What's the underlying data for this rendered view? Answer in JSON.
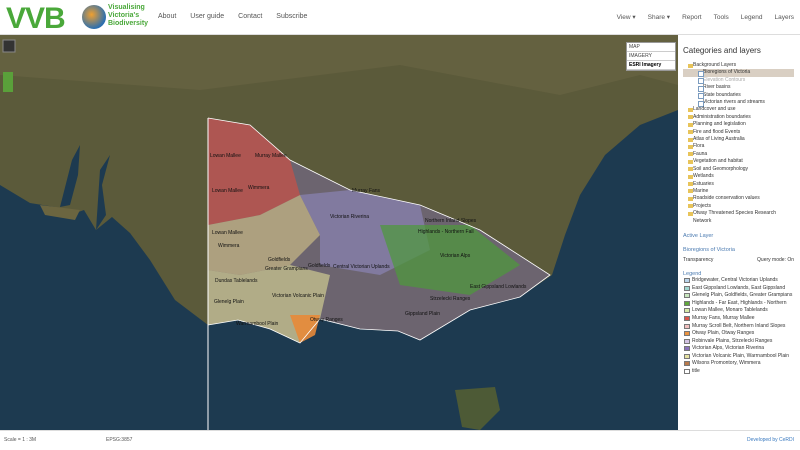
{
  "header": {
    "logo": "VVB",
    "tagline": [
      "Visualising",
      "Victoria's",
      "Biodiversity"
    ],
    "nav": [
      "About",
      "User guide",
      "Contact",
      "Subscribe"
    ],
    "tools": [
      "View",
      "Share",
      "Report",
      "Tools",
      "Legend",
      "Layers"
    ]
  },
  "basemaps": [
    "MAP",
    "IMAGERY",
    "ESRI Imagery"
  ],
  "map_labels": [
    "Lowan Mallee",
    "Murray Mallee",
    "Lowan Mallee",
    "Wimmera",
    "Lowan Mallee",
    "Wimmera",
    "Goldfields",
    "Victorian Riverina",
    "Northern Inland Slopes",
    "Central Victorian Uplands",
    "Greater Grampians",
    "Dundas Tablelands",
    "Victorian Volcanic Plain",
    "Glenelg Plain",
    "Warrnambool Plain",
    "Otway Ranges",
    "Gippsland Plain",
    "East Gippsland Lowlands",
    "Highlands - Northern Fall",
    "Murray Fans",
    "Victorian Alps",
    "Strzelecki Ranges",
    "Goldfields"
  ],
  "panel": {
    "title": "Categories and layers",
    "background": {
      "name": "Background Layers",
      "layers": [
        "Bioregions of Victoria",
        "Elevation Contours",
        "River basins",
        "State boundaries",
        "Victorian rivers and streams"
      ]
    },
    "categories": [
      "Landcover and use",
      "Administration boundaries",
      "Planning and legislation",
      "Fire and flood Events",
      "Atlas of Living Australia",
      "Flora",
      "Fauna",
      "Vegetation and habitat",
      "Soil and Geomorphology",
      "Wetlands",
      "Estuaries",
      "Marine",
      "Roadside conservation values",
      "Projects",
      "Otway Threatened Species Research Network"
    ],
    "active_layer": {
      "heading": "Active Layer",
      "name": "Bioregions of Victoria",
      "transparency": "Transparency",
      "query": "Query mode: On"
    },
    "legend": {
      "heading": "Legend",
      "items": [
        {
          "label": "Bridgewater, Central Victorian Uplands",
          "color": "#b9d3ea"
        },
        {
          "label": "East Gippsland Lowlands, East Gippsland",
          "color": "#9fd6cf"
        },
        {
          "label": "Glenelg Plain, Goldfields, Greater Grampians",
          "color": "#c9e7bf"
        },
        {
          "label": "Highlands - Far East, Highlands - Northern",
          "color": "#5fa83a"
        },
        {
          "label": "Lowan Mallee, Monaro Tablelands",
          "color": "#d6e9a6"
        },
        {
          "label": "Murray Fans, Murray Mallee",
          "color": "#d9544a"
        },
        {
          "label": "Murray Scroll Belt, Northern Inland Slopes",
          "color": "#f2c1c0"
        },
        {
          "label": "Otway Plain, Otway Ranges",
          "color": "#ec9340"
        },
        {
          "label": "Robinvale Plains, Strzelecki Ranges",
          "color": "#d3c3e3"
        },
        {
          "label": "Victorian Alps, Victorian Riverina",
          "color": "#8a72ba"
        },
        {
          "label": "Victorian Volcanic Plain, Warrnambool Plain",
          "color": "#e6e3a2"
        },
        {
          "label": "Wilsons Promontory, Wimmera",
          "color": "#b9794a"
        },
        {
          "label": "title",
          "color": "#ffffff"
        }
      ]
    }
  },
  "footer": {
    "scale": "Scale = 1 : 3M",
    "epsg": "EPSG:3857",
    "credit": "Developed by CeRDI"
  }
}
